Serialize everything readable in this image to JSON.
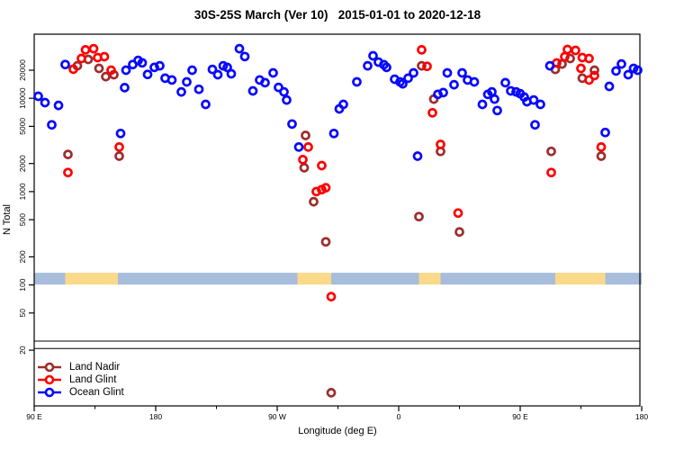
{
  "title": "30S-25S March (Ver 10)   2015-01-01 to 2020-12-18",
  "chart_data": {
    "type": "scatter",
    "title": "30S-25S March (Ver 10)   2015-01-01 to 2020-12-18",
    "xlabel": "Longitude (deg E)",
    "ylabel": "N Total",
    "x_axis": {
      "range": [
        90,
        540
      ],
      "major_ticks": [
        {
          "value": 90,
          "label": "90 E"
        },
        {
          "value": 180,
          "label": "180"
        },
        {
          "value": 270,
          "label": "90 W"
        },
        {
          "value": 360,
          "label": "0"
        },
        {
          "value": 450,
          "label": "90 E"
        },
        {
          "value": 540,
          "label": "180"
        }
      ],
      "minor_ticks": [
        135,
        225,
        315,
        405,
        495
      ]
    },
    "y_axis": {
      "scale": "log",
      "ticks": [
        20,
        50,
        100,
        200,
        500,
        1000,
        2000,
        5000,
        10000,
        20000
      ],
      "range": [
        5,
        48000
      ]
    },
    "axis_break_line_values": [
      25,
      20.8
    ],
    "surface_band": {
      "value_range": [
        101,
        135
      ],
      "ocean_color": "#A8BDDC",
      "land_color": "#FBD98A",
      "segments": [
        {
          "from": 90,
          "to": 113,
          "type": "ocean"
        },
        {
          "from": 113,
          "to": 152,
          "type": "land"
        },
        {
          "from": 152,
          "to": 285,
          "type": "ocean"
        },
        {
          "from": 285,
          "to": 310,
          "type": "land"
        },
        {
          "from": 310,
          "to": 375,
          "type": "ocean"
        },
        {
          "from": 375,
          "to": 391,
          "type": "land"
        },
        {
          "from": 391,
          "to": 476,
          "type": "ocean"
        },
        {
          "from": 476,
          "to": 513,
          "type": "land"
        },
        {
          "from": 513,
          "to": 540,
          "type": "ocean"
        }
      ]
    },
    "series": [
      {
        "name": "Land Nadir",
        "color": "#9E2D2D",
        "points": [
          [
            130,
            26100
          ],
          [
            122,
            22300
          ],
          [
            138,
            20900
          ],
          [
            143,
            17100
          ],
          [
            149,
            17900
          ],
          [
            115,
            2500
          ],
          [
            153,
            2400
          ],
          [
            291,
            4000
          ],
          [
            290,
            1800
          ],
          [
            297,
            780
          ],
          [
            306,
            290
          ],
          [
            310,
            7
          ],
          [
            377,
            22300
          ],
          [
            386,
            9800
          ],
          [
            391,
            2700
          ],
          [
            375,
            540
          ],
          [
            405,
            370
          ],
          [
            476,
            20400
          ],
          [
            481,
            23300
          ],
          [
            487,
            26700
          ],
          [
            505,
            20000
          ],
          [
            496,
            16400
          ],
          [
            473,
            2700
          ],
          [
            510,
            2400
          ]
        ]
      },
      {
        "name": "Land Glint",
        "color": "#FF0000",
        "points": [
          [
            128,
            33000
          ],
          [
            134,
            34000
          ],
          [
            125,
            26700
          ],
          [
            137,
            27300
          ],
          [
            142,
            27900
          ],
          [
            119,
            20500
          ],
          [
            147,
            20000
          ],
          [
            153,
            3000
          ],
          [
            115,
            1600
          ],
          [
            293,
            3000
          ],
          [
            289,
            2200
          ],
          [
            303,
            1900
          ],
          [
            299,
            1000
          ],
          [
            303,
            1050
          ],
          [
            306,
            1100
          ],
          [
            310,
            75
          ],
          [
            377,
            33000
          ],
          [
            381,
            22000
          ],
          [
            385,
            7000
          ],
          [
            391,
            3200
          ],
          [
            404,
            590
          ],
          [
            473,
            1600
          ],
          [
            477,
            23900
          ],
          [
            483,
            27900
          ],
          [
            485,
            33300
          ],
          [
            491,
            32600
          ],
          [
            496,
            27300
          ],
          [
            501,
            26700
          ],
          [
            495,
            20900
          ],
          [
            501,
            15700
          ],
          [
            505,
            17500
          ],
          [
            510,
            3000
          ]
        ]
      },
      {
        "name": "Ocean Glint",
        "color": "#0808FF",
        "points": [
          [
            113,
            23000
          ],
          [
            163,
            23000
          ],
          [
            167,
            25500
          ],
          [
            158,
            20000
          ],
          [
            157,
            13000
          ],
          [
            93,
            10500
          ],
          [
            98,
            9000
          ],
          [
            108,
            8400
          ],
          [
            103,
            5200
          ],
          [
            154,
            4200
          ],
          [
            170,
            24000
          ],
          [
            174,
            18000
          ],
          [
            179,
            21400
          ],
          [
            183,
            22300
          ],
          [
            187,
            16400
          ],
          [
            192,
            15700
          ],
          [
            199,
            11700
          ],
          [
            203,
            15000
          ],
          [
            207,
            20000
          ],
          [
            212,
            12500
          ],
          [
            217,
            8600
          ],
          [
            222,
            20400
          ],
          [
            226,
            17900
          ],
          [
            230,
            22300
          ],
          [
            233,
            21400
          ],
          [
            236,
            18300
          ],
          [
            242,
            34000
          ],
          [
            246,
            28000
          ],
          [
            267,
            18700
          ],
          [
            257,
            15700
          ],
          [
            261,
            14700
          ],
          [
            252,
            12000
          ],
          [
            271,
            13100
          ],
          [
            275,
            11700
          ],
          [
            277,
            9600
          ],
          [
            281,
            5300
          ],
          [
            286,
            3000
          ],
          [
            312,
            4200
          ],
          [
            316,
            7700
          ],
          [
            319,
            8600
          ],
          [
            329,
            15000
          ],
          [
            341,
            28500
          ],
          [
            337,
            22300
          ],
          [
            345,
            24400
          ],
          [
            349,
            22900
          ],
          [
            351,
            21400
          ],
          [
            357,
            16000
          ],
          [
            361,
            15000
          ],
          [
            363,
            14300
          ],
          [
            367,
            16400
          ],
          [
            371,
            18700
          ],
          [
            374,
            2400
          ],
          [
            396,
            18700
          ],
          [
            401,
            14000
          ],
          [
            393,
            11500
          ],
          [
            389,
            11000
          ],
          [
            407,
            18700
          ],
          [
            411,
            15700
          ],
          [
            416,
            15000
          ],
          [
            426,
            11000
          ],
          [
            429,
            11700
          ],
          [
            431,
            9800
          ],
          [
            422,
            8600
          ],
          [
            433,
            7400
          ],
          [
            439,
            14700
          ],
          [
            443,
            12000
          ],
          [
            447,
            11700
          ],
          [
            450,
            11200
          ],
          [
            453,
            10300
          ],
          [
            455,
            9200
          ],
          [
            460,
            9600
          ],
          [
            465,
            8600
          ],
          [
            461,
            5200
          ],
          [
            472,
            22300
          ],
          [
            516,
            13400
          ],
          [
            521,
            19600
          ],
          [
            525,
            23300
          ],
          [
            530,
            17900
          ],
          [
            534,
            20900
          ],
          [
            537,
            20000
          ],
          [
            513,
            4300
          ]
        ]
      }
    ]
  },
  "legend": {
    "items": [
      {
        "label": "Land Nadir",
        "color": "#9E2D2D"
      },
      {
        "label": "Land Glint",
        "color": "#FF0000"
      },
      {
        "label": "Ocean Glint",
        "color": "#0808FF"
      }
    ]
  }
}
